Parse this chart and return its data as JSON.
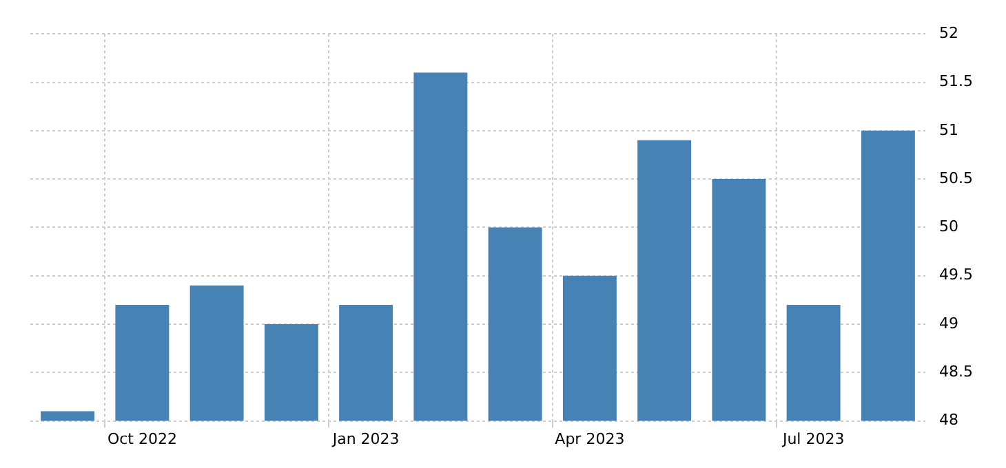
{
  "chart_data": {
    "type": "bar",
    "categories": [
      null,
      "Oct 2022",
      null,
      null,
      "Jan 2023",
      null,
      null,
      "Apr 2023",
      null,
      null,
      "Jul 2023",
      null
    ],
    "values": [
      48.1,
      49.2,
      49.4,
      49.0,
      49.2,
      51.6,
      50.0,
      49.5,
      50.9,
      50.5,
      49.2,
      51.0
    ],
    "color": "#4682b4",
    "ylim": [
      48,
      52
    ],
    "yticks": [
      48,
      48.5,
      49,
      49.5,
      50,
      50.5,
      51,
      51.5,
      52
    ],
    "grid": true,
    "legend": false
  }
}
